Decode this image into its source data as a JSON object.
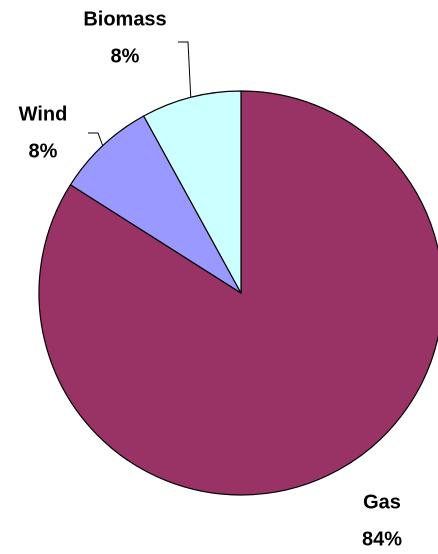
{
  "chart_data": {
    "type": "pie",
    "categories": [
      "Gas",
      "Wind",
      "Biomass"
    ],
    "values": [
      84,
      8,
      8
    ],
    "value_labels": [
      "84%",
      "8%",
      "8%"
    ],
    "colors": [
      "#993366",
      "#9999ff",
      "#ccffff"
    ]
  }
}
